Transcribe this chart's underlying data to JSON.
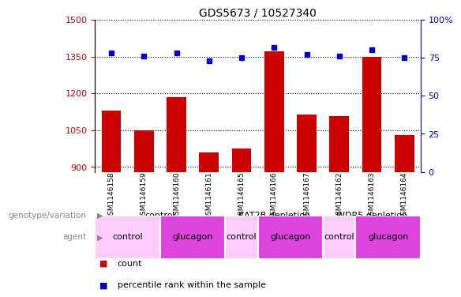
{
  "title": "GDS5673 / 10527340",
  "samples": [
    "GSM1146158",
    "GSM1146159",
    "GSM1146160",
    "GSM1146161",
    "GSM1146165",
    "GSM1146166",
    "GSM1146167",
    "GSM1146162",
    "GSM1146163",
    "GSM1146164"
  ],
  "counts": [
    1130,
    1048,
    1185,
    960,
    975,
    1370,
    1113,
    1108,
    1350,
    1030
  ],
  "percentiles": [
    78,
    76,
    78,
    73,
    75,
    82,
    77,
    76,
    80,
    75
  ],
  "ylim_left": [
    880,
    1500
  ],
  "ylim_right": [
    0,
    100
  ],
  "yticks_left": [
    900,
    1050,
    1200,
    1350,
    1500
  ],
  "yticks_right": [
    0,
    25,
    50,
    75,
    100
  ],
  "bar_color": "#cc0000",
  "dot_color": "#0000cc",
  "genotype_groups": [
    {
      "label": "control",
      "start": 0,
      "end": 4,
      "color": "#ccffcc"
    },
    {
      "label": "KAT2B depletion",
      "start": 4,
      "end": 7,
      "color": "#44cc44"
    },
    {
      "label": "WDR5 depletion",
      "start": 7,
      "end": 10,
      "color": "#44cc44"
    }
  ],
  "agent_groups": [
    {
      "label": "control",
      "start": 0,
      "end": 2,
      "color": "#ffccff"
    },
    {
      "label": "glucagon",
      "start": 2,
      "end": 4,
      "color": "#dd44dd"
    },
    {
      "label": "control",
      "start": 4,
      "end": 5,
      "color": "#ffccff"
    },
    {
      "label": "glucagon",
      "start": 5,
      "end": 7,
      "color": "#dd44dd"
    },
    {
      "label": "control",
      "start": 7,
      "end": 8,
      "color": "#ffccff"
    },
    {
      "label": "glucagon",
      "start": 8,
      "end": 10,
      "color": "#dd44dd"
    }
  ],
  "legend_count_color": "#cc0000",
  "legend_dot_color": "#0000cc",
  "background_color": "#ffffff",
  "tick_gray_bg": "#cccccc",
  "label_color": "#888888"
}
